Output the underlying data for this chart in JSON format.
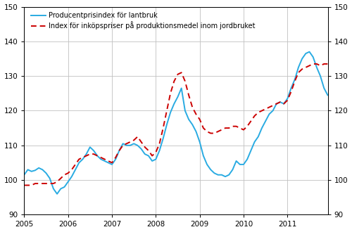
{
  "legend1": "Producentprisindex för lantbruk",
  "legend2": "Index för inköpspriser på produktionsmedel inom jordbruket",
  "ylim": [
    90,
    150
  ],
  "yticks": [
    90,
    100,
    110,
    120,
    130,
    140,
    150
  ],
  "xtick_years": [
    2005,
    2006,
    2007,
    2008,
    2009,
    2010,
    2011
  ],
  "color1": "#29ABE2",
  "color2": "#CC0000",
  "lw1": 1.4,
  "lw2": 1.4,
  "blue_data": [
    101.5,
    103.0,
    102.5,
    102.8,
    103.5,
    103.0,
    102.0,
    100.5,
    97.5,
    96.0,
    97.5,
    98.0,
    99.5,
    101.0,
    103.0,
    105.0,
    106.0,
    107.5,
    109.5,
    108.5,
    107.0,
    106.0,
    105.5,
    105.0,
    104.5,
    106.0,
    108.5,
    110.5,
    110.0,
    110.0,
    110.5,
    110.0,
    109.0,
    107.5,
    107.0,
    105.5,
    106.0,
    108.5,
    112.0,
    116.0,
    119.5,
    122.0,
    124.0,
    126.5,
    120.0,
    117.5,
    116.0,
    114.0,
    111.0,
    107.0,
    104.5,
    103.0,
    102.0,
    101.5,
    101.5,
    101.0,
    101.5,
    103.0,
    105.5,
    104.5,
    104.5,
    106.0,
    108.5,
    111.0,
    112.5,
    115.0,
    117.0,
    119.0,
    120.0,
    122.0,
    122.5,
    122.0,
    123.5,
    126.5,
    129.0,
    132.5,
    135.0,
    136.5,
    137.0,
    135.5,
    132.5,
    130.0,
    126.5,
    124.5
  ],
  "red_data": [
    98.5,
    98.5,
    98.5,
    99.0,
    99.0,
    99.0,
    99.0,
    99.0,
    99.0,
    99.5,
    100.5,
    101.5,
    102.0,
    103.0,
    104.5,
    106.0,
    106.5,
    107.0,
    107.5,
    107.5,
    107.0,
    106.5,
    106.0,
    105.5,
    105.0,
    106.5,
    108.5,
    110.0,
    110.5,
    111.0,
    111.5,
    112.5,
    111.0,
    109.5,
    108.5,
    107.0,
    108.0,
    110.5,
    115.0,
    120.0,
    125.0,
    128.5,
    130.5,
    131.0,
    128.5,
    124.5,
    121.0,
    119.0,
    117.5,
    115.0,
    114.0,
    113.5,
    113.5,
    114.0,
    114.5,
    115.0,
    115.0,
    115.5,
    115.5,
    115.0,
    114.5,
    115.5,
    117.0,
    118.5,
    119.5,
    120.0,
    120.5,
    121.0,
    121.5,
    122.0,
    122.5,
    122.0,
    123.0,
    125.5,
    128.5,
    131.0,
    132.0,
    132.5,
    133.0,
    133.5,
    133.5,
    133.0,
    133.5,
    133.5
  ]
}
